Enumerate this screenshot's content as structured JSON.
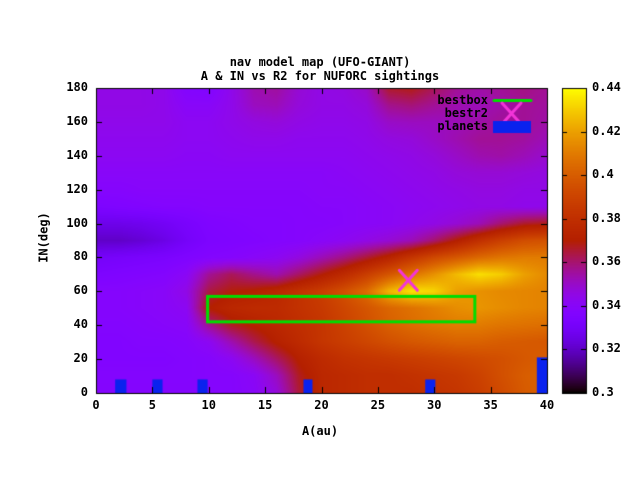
{
  "window": {
    "background": "#ffffff"
  },
  "chart_data": {
    "type": "heatmap",
    "title": "nav model map (UFO-GIANT)",
    "subtitle": "A & IN vs R2 for NUFORC sightings",
    "xlabel": "A(au)",
    "ylabel": "IN(deg)",
    "xlim": [
      0,
      40
    ],
    "ylim": [
      0,
      180
    ],
    "x_ticks": [
      "0",
      "5",
      "10",
      "15",
      "20",
      "25",
      "30",
      "35",
      "40"
    ],
    "y_ticks": [
      "0",
      "20",
      "40",
      "60",
      "80",
      "100",
      "120",
      "140",
      "160",
      "180"
    ],
    "grid_on": false,
    "legend_position": "top-right-inside",
    "colorbar": {
      "min": 0.3,
      "max": 0.44,
      "tick_labels": [
        "0.44",
        "0.42",
        "0.4",
        "0.38",
        "0.36",
        "0.34",
        "0.32",
        "0.3"
      ],
      "palette": "gnuplot pm3d black-blue-violet-red-orange-yellow",
      "palette_stops": {
        "0.30": "#000000",
        "0.32": "#4a02b4",
        "0.34": "#8b08e8",
        "0.36": "#a11096",
        "0.38": "#c03000",
        "0.40": "#d86000",
        "0.42": "#eda000",
        "0.44": "#fdf200"
      }
    },
    "grid": {
      "comment": "R2 values sampled on A=0..40 step 2 (21 cols) x IN=180..0 step -10 (19 rows)",
      "a0": 0,
      "da": 2,
      "in0": 180,
      "din": -10,
      "values": [
        [
          0.345,
          0.345,
          0.345,
          0.344,
          0.337,
          0.336,
          0.344,
          0.353,
          0.355,
          0.348,
          0.345,
          0.346,
          0.35,
          0.366,
          0.368,
          0.362,
          0.356,
          0.354,
          0.356,
          0.358,
          0.356
        ],
        [
          0.345,
          0.345,
          0.345,
          0.344,
          0.34,
          0.34,
          0.344,
          0.351,
          0.352,
          0.347,
          0.345,
          0.345,
          0.347,
          0.357,
          0.359,
          0.356,
          0.353,
          0.352,
          0.354,
          0.356,
          0.355
        ],
        [
          0.344,
          0.344,
          0.344,
          0.344,
          0.342,
          0.342,
          0.344,
          0.346,
          0.347,
          0.345,
          0.344,
          0.344,
          0.345,
          0.35,
          0.351,
          0.351,
          0.352,
          0.354,
          0.356,
          0.356,
          0.354
        ],
        [
          0.343,
          0.343,
          0.343,
          0.343,
          0.342,
          0.342,
          0.343,
          0.344,
          0.344,
          0.343,
          0.343,
          0.343,
          0.344,
          0.346,
          0.347,
          0.35,
          0.353,
          0.356,
          0.356,
          0.355,
          0.352
        ],
        [
          0.342,
          0.342,
          0.342,
          0.342,
          0.341,
          0.341,
          0.342,
          0.342,
          0.342,
          0.342,
          0.342,
          0.342,
          0.343,
          0.344,
          0.345,
          0.347,
          0.35,
          0.353,
          0.354,
          0.352,
          0.349
        ],
        [
          0.34,
          0.34,
          0.34,
          0.34,
          0.34,
          0.34,
          0.34,
          0.34,
          0.34,
          0.34,
          0.34,
          0.341,
          0.342,
          0.343,
          0.344,
          0.345,
          0.347,
          0.348,
          0.348,
          0.347,
          0.346
        ],
        [
          0.338,
          0.338,
          0.339,
          0.339,
          0.339,
          0.339,
          0.339,
          0.339,
          0.339,
          0.339,
          0.34,
          0.34,
          0.341,
          0.342,
          0.343,
          0.344,
          0.345,
          0.346,
          0.346,
          0.345,
          0.345
        ],
        [
          0.334,
          0.335,
          0.336,
          0.337,
          0.337,
          0.338,
          0.338,
          0.338,
          0.338,
          0.338,
          0.339,
          0.339,
          0.34,
          0.341,
          0.342,
          0.343,
          0.344,
          0.345,
          0.345,
          0.344,
          0.344
        ],
        [
          0.326,
          0.326,
          0.327,
          0.329,
          0.332,
          0.335,
          0.336,
          0.337,
          0.337,
          0.338,
          0.338,
          0.339,
          0.34,
          0.341,
          0.343,
          0.345,
          0.348,
          0.352,
          0.36,
          0.366,
          0.368
        ],
        [
          0.32,
          0.32,
          0.322,
          0.325,
          0.33,
          0.334,
          0.335,
          0.336,
          0.337,
          0.338,
          0.34,
          0.342,
          0.345,
          0.348,
          0.352,
          0.36,
          0.37,
          0.38,
          0.388,
          0.394,
          0.396
        ],
        [
          0.33,
          0.331,
          0.332,
          0.333,
          0.335,
          0.337,
          0.338,
          0.34,
          0.342,
          0.346,
          0.352,
          0.358,
          0.365,
          0.373,
          0.383,
          0.392,
          0.398,
          0.404,
          0.408,
          0.41,
          0.41
        ],
        [
          0.334,
          0.335,
          0.336,
          0.337,
          0.341,
          0.356,
          0.362,
          0.357,
          0.353,
          0.361,
          0.369,
          0.377,
          0.387,
          0.397,
          0.407,
          0.416,
          0.426,
          0.434,
          0.43,
          0.42,
          0.414
        ],
        [
          0.338,
          0.338,
          0.339,
          0.34,
          0.345,
          0.364,
          0.369,
          0.371,
          0.375,
          0.381,
          0.387,
          0.395,
          0.405,
          0.425,
          0.435,
          0.432,
          0.42,
          0.416,
          0.414,
          0.413,
          0.412
        ],
        [
          0.338,
          0.338,
          0.339,
          0.34,
          0.342,
          0.37,
          0.375,
          0.377,
          0.377,
          0.381,
          0.385,
          0.391,
          0.397,
          0.403,
          0.407,
          0.411,
          0.415,
          0.417,
          0.415,
          0.413,
          0.412
        ],
        [
          0.337,
          0.337,
          0.338,
          0.339,
          0.34,
          0.357,
          0.367,
          0.371,
          0.375,
          0.379,
          0.383,
          0.389,
          0.395,
          0.401,
          0.405,
          0.408,
          0.41,
          0.41,
          0.408,
          0.407,
          0.406
        ],
        [
          0.336,
          0.336,
          0.337,
          0.337,
          0.338,
          0.342,
          0.353,
          0.363,
          0.371,
          0.377,
          0.383,
          0.387,
          0.391,
          0.395,
          0.398,
          0.4,
          0.402,
          0.402,
          0.4,
          0.399,
          0.398
        ],
        [
          0.336,
          0.336,
          0.336,
          0.336,
          0.337,
          0.338,
          0.342,
          0.351,
          0.361,
          0.371,
          0.377,
          0.381,
          0.383,
          0.385,
          0.387,
          0.389,
          0.391,
          0.393,
          0.395,
          0.398,
          0.4
        ],
        [
          0.337,
          0.337,
          0.337,
          0.337,
          0.337,
          0.338,
          0.338,
          0.341,
          0.351,
          0.367,
          0.375,
          0.377,
          0.379,
          0.379,
          0.381,
          0.383,
          0.385,
          0.389,
          0.395,
          0.4,
          0.402
        ],
        [
          0.338,
          0.338,
          0.338,
          0.338,
          0.338,
          0.338,
          0.338,
          0.34,
          0.347,
          0.365,
          0.375,
          0.377,
          0.379,
          0.379,
          0.379,
          0.381,
          0.383,
          0.387,
          0.393,
          0.399,
          0.402
        ]
      ]
    },
    "legend": [
      {
        "label": "bestbox",
        "type": "line",
        "color": "#00dd00"
      },
      {
        "label": "bestr2",
        "type": "cross",
        "color": "#f334d8"
      },
      {
        "label": "planets",
        "type": "box",
        "color": "#0a22ee"
      }
    ],
    "overlays": {
      "bestbox": {
        "a_min": 9.9,
        "a_max": 33.6,
        "in_min": 42,
        "in_max": 57,
        "color": "#00dd00"
      },
      "bestr2": {
        "a": 27.7,
        "in": 66.5,
        "color": "#f334d8"
      },
      "planets": {
        "color": "#0a22ee",
        "boxes": [
          {
            "a_min": 1.7,
            "a_max": 2.7,
            "in_max": 8
          },
          {
            "a_min": 5.0,
            "a_max": 5.9,
            "in_max": 8
          },
          {
            "a_min": 9.0,
            "a_max": 9.9,
            "in_max": 8
          },
          {
            "a_min": 18.4,
            "a_max": 19.2,
            "in_max": 8
          },
          {
            "a_min": 29.2,
            "a_max": 30.1,
            "in_max": 8
          },
          {
            "a_min": 39.1,
            "a_max": 40.0,
            "in_max": 21
          }
        ]
      }
    }
  }
}
